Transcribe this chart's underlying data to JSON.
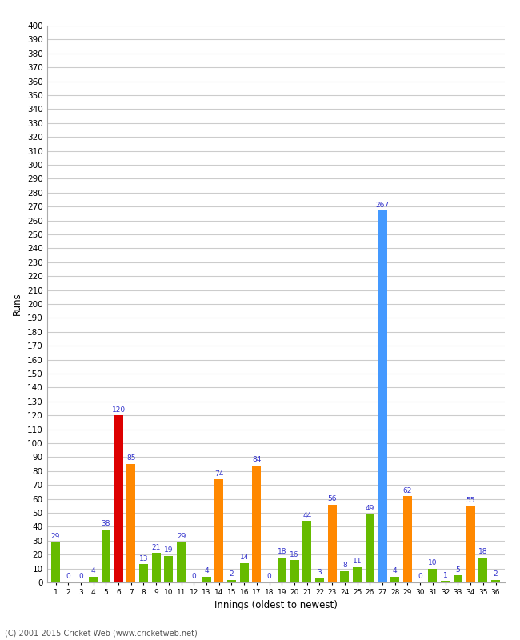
{
  "xlabel": "Innings (oldest to newest)",
  "ylabel": "Runs",
  "footer": "(C) 2001-2015 Cricket Web (www.cricketweb.net)",
  "innings": [
    1,
    2,
    3,
    4,
    5,
    6,
    7,
    8,
    9,
    10,
    11,
    12,
    13,
    14,
    15,
    16,
    17,
    18,
    19,
    20,
    21,
    22,
    23,
    24,
    25,
    26,
    27,
    28,
    29,
    30,
    31,
    32,
    33,
    34,
    35,
    36
  ],
  "values": [
    29,
    0,
    0,
    4,
    38,
    120,
    85,
    13,
    21,
    19,
    29,
    0,
    4,
    74,
    2,
    14,
    84,
    0,
    18,
    16,
    44,
    3,
    56,
    8,
    11,
    49,
    267,
    4,
    62,
    0,
    10,
    1,
    5,
    55,
    18,
    2
  ],
  "colors": [
    "green",
    "green",
    "green",
    "green",
    "green",
    "red",
    "orange",
    "green",
    "green",
    "green",
    "green",
    "green",
    "green",
    "orange",
    "green",
    "green",
    "orange",
    "green",
    "green",
    "green",
    "green",
    "green",
    "orange",
    "green",
    "green",
    "green",
    "blue",
    "green",
    "orange",
    "green",
    "green",
    "green",
    "green",
    "orange",
    "green",
    "green"
  ],
  "ylim": [
    0,
    400
  ],
  "yticks": [
    0,
    10,
    20,
    30,
    40,
    50,
    60,
    70,
    80,
    90,
    100,
    110,
    120,
    130,
    140,
    150,
    160,
    170,
    180,
    190,
    200,
    210,
    220,
    230,
    240,
    250,
    260,
    270,
    280,
    290,
    300,
    310,
    320,
    330,
    340,
    350,
    360,
    370,
    380,
    390,
    400
  ],
  "bg_color": "#ffffff",
  "grid_color": "#cccccc",
  "bar_color_map": {
    "green": "#66bb00",
    "orange": "#ff8800",
    "red": "#dd0000",
    "blue": "#4499ff"
  },
  "label_color": "#3333cc",
  "label_fontsize": 6.5
}
